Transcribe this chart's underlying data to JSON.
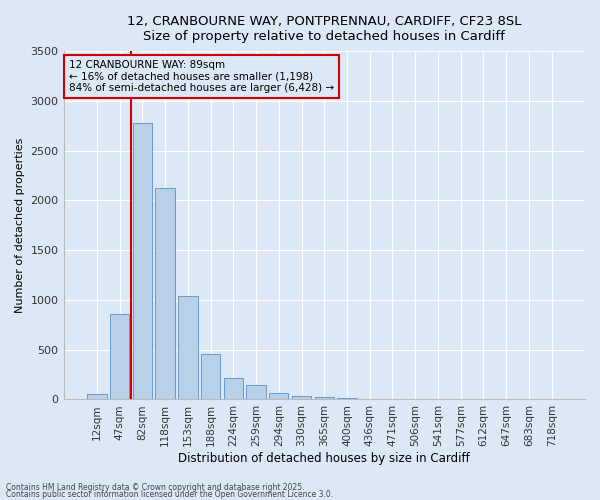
{
  "title_line1": "12, CRANBOURNE WAY, PONTPRENNAU, CARDIFF, CF23 8SL",
  "title_line2": "Size of property relative to detached houses in Cardiff",
  "xlabel": "Distribution of detached houses by size in Cardiff",
  "ylabel": "Number of detached properties",
  "categories": [
    "12sqm",
    "47sqm",
    "82sqm",
    "118sqm",
    "153sqm",
    "188sqm",
    "224sqm",
    "259sqm",
    "294sqm",
    "330sqm",
    "365sqm",
    "400sqm",
    "436sqm",
    "471sqm",
    "506sqm",
    "541sqm",
    "577sqm",
    "612sqm",
    "647sqm",
    "683sqm",
    "718sqm"
  ],
  "values": [
    55,
    860,
    2780,
    2120,
    1035,
    460,
    215,
    150,
    65,
    35,
    20,
    10,
    5,
    3,
    0,
    0,
    0,
    0,
    0,
    0,
    0
  ],
  "bar_color": "#b8d0e8",
  "bar_edge_color": "#6699cc",
  "vline_x": 1.5,
  "vline_color": "#cc0000",
  "annotation_text": "12 CRANBOURNE WAY: 89sqm\n← 16% of detached houses are smaller (1,198)\n84% of semi-detached houses are larger (6,428) →",
  "annotation_box_color": "#cc0000",
  "ylim": [
    0,
    3500
  ],
  "yticks": [
    0,
    500,
    1000,
    1500,
    2000,
    2500,
    3000,
    3500
  ],
  "background_color": "#dce8f5",
  "grid_color": "#ffffff",
  "footer1": "Contains HM Land Registry data © Crown copyright and database right 2025.",
  "footer2": "Contains public sector information licensed under the Open Government Licence 3.0."
}
